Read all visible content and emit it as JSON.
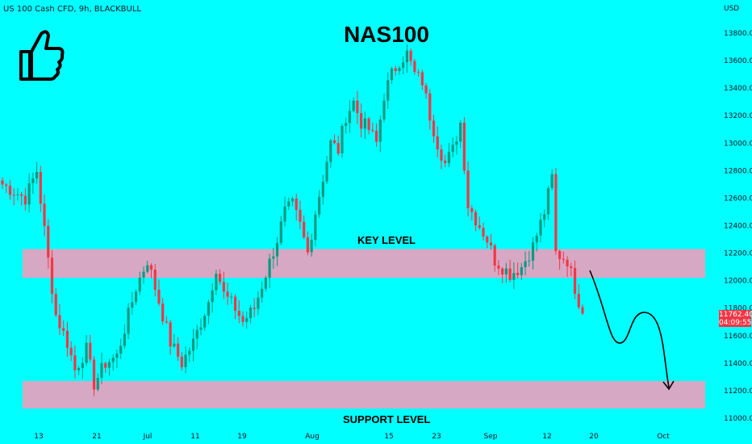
{
  "header": {
    "symbol": "US 100 Cash CFD, 9h, BLACKBULL",
    "currency": "USD",
    "title": "NAS100"
  },
  "icons": {
    "thumbs_up": "thumbs-up-icon"
  },
  "annotations": {
    "key_level": {
      "label": "KEY LEVEL",
      "low": 12020,
      "high": 12230
    },
    "support_level": {
      "label": "SUPPORT LEVEL",
      "low": 11070,
      "high": 11270
    },
    "projection": "curved arrow: dip to ~11550, bounce to ~11770, then decline toward ~11200 by early October"
  },
  "price_tag": {
    "price": "11762.40",
    "countdown": "04:09:55"
  },
  "colors": {
    "background": "#00ffff",
    "up_candle": "#089981",
    "down_candle": "#f23645",
    "zone": "#d7a8c4"
  },
  "chart_data": {
    "type": "candlestick",
    "title": "NAS100",
    "ylim": [
      10950,
      13950
    ],
    "y_ticks": [
      "11000.00",
      "11200.00",
      "11400.00",
      "11600.00",
      "11800.00",
      "12000.00",
      "12200.00",
      "12400.00",
      "12600.00",
      "12800.00",
      "13000.00",
      "13200.00",
      "13400.00",
      "13600.00",
      "13800.00"
    ],
    "x_labels": [
      "13",
      "21",
      "Jul",
      "11",
      "19",
      "Aug",
      "15",
      "23",
      "Sep",
      "12",
      "20",
      "Oct"
    ],
    "path": [
      [
        0,
        12700
      ],
      [
        6,
        12600
      ],
      [
        9,
        12800
      ],
      [
        12,
        12150
      ],
      [
        14,
        11750
      ],
      [
        17,
        11550
      ],
      [
        19,
        11350
      ],
      [
        22,
        11500
      ],
      [
        24,
        11250
      ],
      [
        27,
        11400
      ],
      [
        30,
        11450
      ],
      [
        35,
        11950
      ],
      [
        38,
        12150
      ],
      [
        41,
        11850
      ],
      [
        44,
        11550
      ],
      [
        47,
        11400
      ],
      [
        50,
        11550
      ],
      [
        54,
        11850
      ],
      [
        56,
        12100
      ],
      [
        58,
        11900
      ],
      [
        61,
        11800
      ],
      [
        63,
        11700
      ],
      [
        66,
        11800
      ],
      [
        69,
        12050
      ],
      [
        72,
        12300
      ],
      [
        74,
        12500
      ],
      [
        76,
        12550
      ],
      [
        78,
        12400
      ],
      [
        80,
        12200
      ],
      [
        82,
        12500
      ],
      [
        84,
        12750
      ],
      [
        86,
        13000
      ],
      [
        88,
        12950
      ],
      [
        90,
        13200
      ],
      [
        92,
        13300
      ],
      [
        94,
        13150
      ],
      [
        96,
        13100
      ],
      [
        98,
        13000
      ],
      [
        100,
        13350
      ],
      [
        102,
        13500
      ],
      [
        104,
        13600
      ],
      [
        106,
        13650
      ],
      [
        108,
        13500
      ],
      [
        110,
        13450
      ],
      [
        112,
        13200
      ],
      [
        114,
        13000
      ],
      [
        116,
        12850
      ],
      [
        118,
        12950
      ],
      [
        120,
        13150
      ],
      [
        122,
        12550
      ],
      [
        125,
        12400
      ],
      [
        127,
        12300
      ],
      [
        129,
        12150
      ],
      [
        131,
        12100
      ],
      [
        133,
        12050
      ],
      [
        136,
        12100
      ],
      [
        139,
        12250
      ],
      [
        142,
        12500
      ],
      [
        144,
        12750
      ],
      [
        145,
        12200
      ],
      [
        148,
        12150
      ],
      [
        150,
        11950
      ],
      [
        152,
        11760
      ]
    ]
  }
}
